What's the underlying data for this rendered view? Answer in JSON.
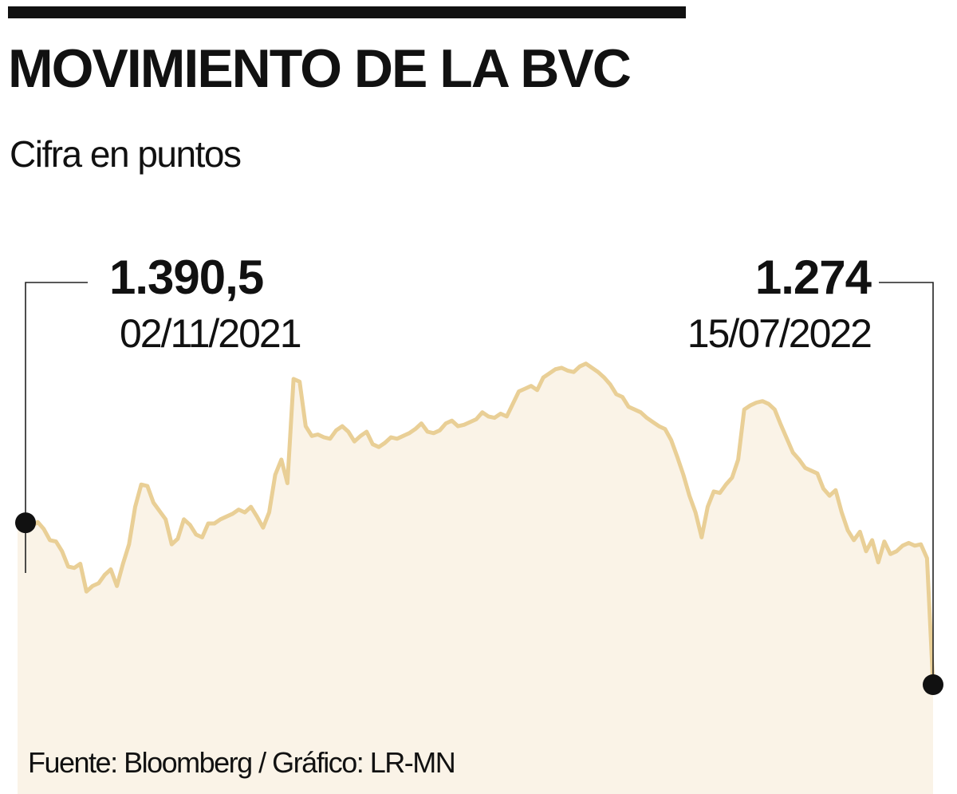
{
  "header": {
    "title": "MOVIMIENTO DE LA BVC",
    "subtitle": "Cifra en puntos"
  },
  "callouts": {
    "start": {
      "value": "1.390,5",
      "date": "02/11/2021"
    },
    "end": {
      "value": "1.274",
      "date": "15/07/2022"
    }
  },
  "footer": {
    "source": "Fuente: Bloomberg / Gráfico: LR-MN"
  },
  "colors": {
    "line": "#e9cf96",
    "area": "#faf3e7",
    "text": "#111111"
  },
  "chart_data": {
    "type": "area",
    "title": "MOVIMIENTO DE LA BVC",
    "subtitle": "Cifra en puntos",
    "x_start": "02/11/2021",
    "x_end": "15/07/2022",
    "grid": false,
    "legend": "none",
    "unit": "puntos",
    "start_value": 1390.5,
    "end_value": 1274,
    "values": [
      1390.5,
      1388,
      1391,
      1386,
      1378,
      1377,
      1370,
      1359,
      1358,
      1361,
      1341,
      1345,
      1347,
      1353,
      1357,
      1345,
      1361,
      1375,
      1402,
      1418,
      1417,
      1405,
      1399,
      1393,
      1375,
      1379,
      1393,
      1389,
      1382,
      1380,
      1390,
      1390,
      1393,
      1395,
      1397,
      1400,
      1398,
      1402,
      1395,
      1387,
      1398,
      1425,
      1436,
      1419,
      1494,
      1492,
      1460,
      1453,
      1454,
      1452,
      1451,
      1457,
      1460,
      1456,
      1449,
      1453,
      1456,
      1447,
      1445,
      1448,
      1452,
      1451,
      1453,
      1455,
      1458,
      1462,
      1456,
      1455,
      1457,
      1462,
      1464,
      1460,
      1461,
      1463,
      1465,
      1470,
      1467,
      1466,
      1469,
      1467,
      1476,
      1485,
      1487,
      1489,
      1486,
      1495,
      1498,
      1501,
      1502,
      1500,
      1499,
      1503,
      1505,
      1502,
      1499,
      1495,
      1490,
      1483,
      1481,
      1474,
      1472,
      1470,
      1466,
      1463,
      1460,
      1458,
      1450,
      1438,
      1425,
      1410,
      1398,
      1380,
      1402,
      1413,
      1412,
      1418,
      1423,
      1436,
      1472,
      1475,
      1477,
      1478,
      1476,
      1472,
      1461,
      1451,
      1441,
      1436,
      1430,
      1428,
      1426,
      1415,
      1410,
      1414,
      1398,
      1385,
      1378,
      1384,
      1370,
      1378,
      1362,
      1377,
      1368,
      1370,
      1374,
      1376,
      1374,
      1375,
      1365,
      1274
    ],
    "extremes": [
      1274,
      1510
    ]
  }
}
